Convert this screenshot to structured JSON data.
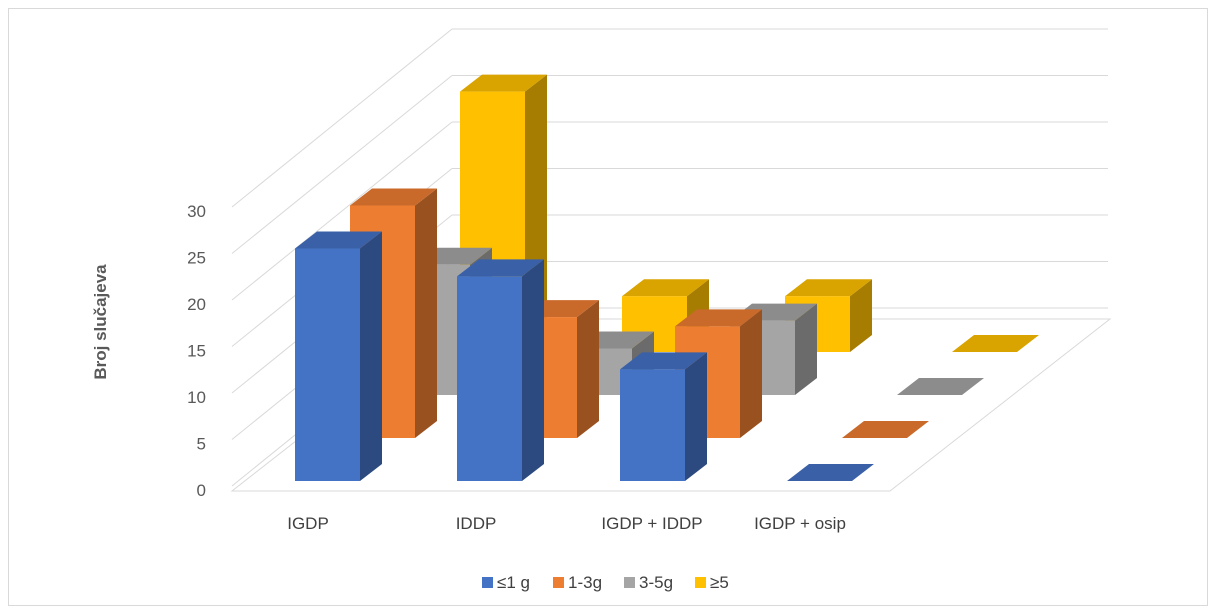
{
  "chart_data": {
    "type": "bar",
    "subtype": "3d-clustered-column",
    "title": "",
    "ylabel": "Broj slučajeva",
    "xlabel": "",
    "ylim": [
      0,
      30
    ],
    "yticks": [
      "0",
      "5",
      "10",
      "15",
      "20",
      "25",
      "30"
    ],
    "categories": [
      "IGDP",
      "IDDP",
      "IGDP + IDDP",
      "IGDP + osip"
    ],
    "series": [
      {
        "name": "≤1 g",
        "values": [
          25,
          22,
          12,
          0
        ],
        "color": "#4472c4"
      },
      {
        "name": "1-3g",
        "values": [
          25,
          13,
          12,
          0
        ],
        "color": "#ed7d31"
      },
      {
        "name": "3-5g",
        "values": [
          14,
          5,
          8,
          0
        ],
        "color": "#a5a5a5"
      },
      {
        "name": "≥5",
        "values": [
          28,
          6,
          6,
          0
        ],
        "color": "#ffc000"
      }
    ],
    "gridlines": true,
    "legend_position": "bottom"
  }
}
